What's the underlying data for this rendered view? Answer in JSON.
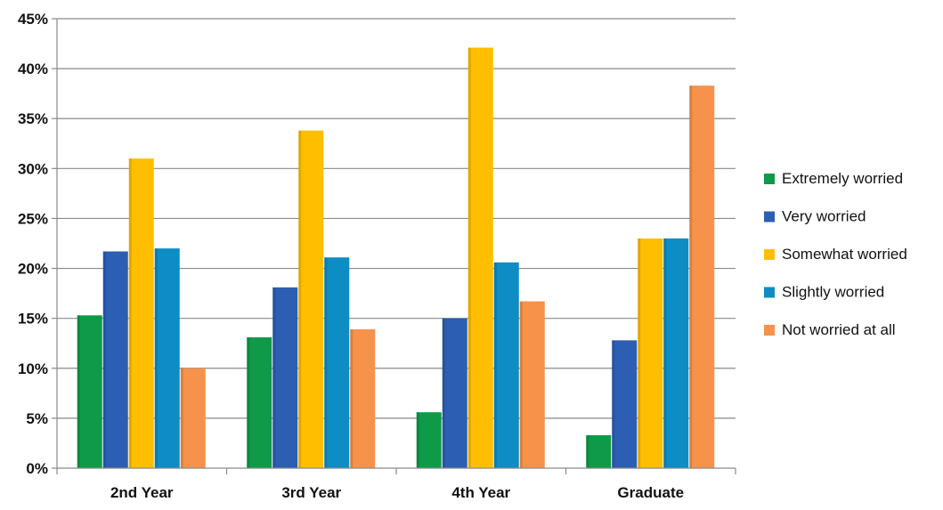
{
  "chart_data": {
    "type": "bar",
    "categories": [
      "2nd Year",
      "3rd Year",
      "4th Year",
      "Graduate"
    ],
    "y_ticks": [
      "0%",
      "5%",
      "10%",
      "15%",
      "20%",
      "25%",
      "30%",
      "35%",
      "40%",
      "45%"
    ],
    "ylim": [
      0,
      45
    ],
    "grid": true,
    "legend_position": "right",
    "series": [
      {
        "name": "Extremely worried",
        "color": "#0e9a48",
        "values": [
          15.3,
          13.1,
          5.6,
          3.3
        ]
      },
      {
        "name": "Very worried",
        "color": "#2c5fb3",
        "values": [
          21.7,
          18.1,
          15.0,
          12.8
        ]
      },
      {
        "name": "Somewhat worried",
        "color": "#ffbf00",
        "values": [
          31.0,
          33.8,
          42.1,
          23.0
        ]
      },
      {
        "name": "Slightly worried",
        "color": "#0e8cc4",
        "values": [
          22.0,
          21.1,
          20.6,
          23.0
        ]
      },
      {
        "name": "Not worried at all",
        "color": "#f6924a",
        "values": [
          10.0,
          13.9,
          16.7,
          38.3
        ]
      }
    ]
  }
}
